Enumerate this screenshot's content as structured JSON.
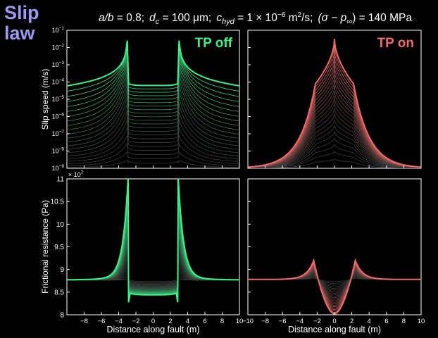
{
  "figure": {
    "law_title": [
      "Slip",
      "law"
    ],
    "params_caption": {
      "ab_symbol": "a/b",
      "ab_value": " = 0.8;",
      "dc_symbol": "d",
      "dc_sub": "c",
      "dc_value": " = 100 μm;",
      "chyd_symbol": "c",
      "chyd_sub": "hyd",
      "chyd_value": " = 1 × 10",
      "chyd_exp": "−6",
      "chyd_unit": " m",
      "chyd_unit_exp": "2",
      "chyd_unit_tail": "/s;",
      "stress_symbol": "(σ − p",
      "stress_sub": "∞",
      "stress_value": ") = 140 MPa"
    },
    "colors": {
      "background": "#000000",
      "law_title": "#9f97f0",
      "tp_off": "#3ef08a",
      "tp_on": "#f06a6a",
      "axes": "#ffffff"
    }
  },
  "chart_data": [
    {
      "id": "slip_tp_off",
      "type": "line",
      "panel_label": "TP off",
      "label_color": "#3ef08a",
      "ylabel": "Slip speed (m/s)",
      "xlabel": "",
      "xlim": [
        -10,
        10
      ],
      "ylim_log10": [
        -9,
        -1
      ],
      "yscale": "log",
      "y_ticks": [
        {
          "base": "10",
          "exp": "−1"
        },
        {
          "base": "10",
          "exp": "−2"
        },
        {
          "base": "10",
          "exp": "−3"
        },
        {
          "base": "10",
          "exp": "−4"
        },
        {
          "base": "10",
          "exp": "−5"
        },
        {
          "base": "10",
          "exp": "−6"
        },
        {
          "base": "10",
          "exp": "−7"
        },
        {
          "base": "10",
          "exp": "−8"
        },
        {
          "base": "10",
          "exp": "−9"
        }
      ],
      "x_ticks": [],
      "profile": {
        "kind": "tp_off_slip",
        "rupture_half_width": 3.0,
        "center_plateau_log10_final": -4.2,
        "peak_log10": -1.6,
        "background_log10": -9
      },
      "series_count": 22
    },
    {
      "id": "slip_tp_on",
      "type": "line",
      "panel_label": "TP on",
      "label_color": "#f06a6a",
      "ylabel": "",
      "xlabel": "",
      "xlim": [
        -10,
        10
      ],
      "ylim_log10": [
        -9,
        -1
      ],
      "yscale": "log",
      "y_ticks": [],
      "x_ticks": [],
      "profile": {
        "kind": "tp_on_slip",
        "peak_log10": -1.5,
        "shoulder_log10": -4.1,
        "background_log10": -9
      },
      "series_count": 22
    },
    {
      "id": "stress_tp_off",
      "type": "line",
      "ylabel": "Frictional resistance (Pa)",
      "xlabel": "Distance along fault (m)",
      "multiplier_label": {
        "base": "× 10",
        "exp": "7"
      },
      "xlim": [
        -10,
        10
      ],
      "ylim": [
        8,
        11
      ],
      "y_ticks": [
        "11",
        "10.5",
        "10",
        "9.5",
        "9",
        "8.5",
        "8"
      ],
      "y_tick_values": [
        11,
        10.5,
        10,
        9.5,
        9,
        8.5,
        8
      ],
      "x_ticks": [
        "−8",
        "−6",
        "−4",
        "−2",
        "0",
        "2",
        "4",
        "6",
        "8",
        "10"
      ],
      "x_tick_values": [
        -8,
        -6,
        -4,
        -2,
        0,
        2,
        4,
        6,
        8,
        10
      ],
      "profile": {
        "kind": "tp_off_stress",
        "background": 8.76,
        "center_final": 8.44,
        "peak": 11.0,
        "min_edge": 8.22
      },
      "series_count": 22
    },
    {
      "id": "stress_tp_on",
      "type": "line",
      "ylabel": "",
      "xlabel": "Distance along fault (m)",
      "xlim": [
        -10,
        10
      ],
      "ylim": [
        8,
        11
      ],
      "y_ticks": [],
      "x_ticks": [
        "−10",
        "−8",
        "−6",
        "−4",
        "−2",
        "0",
        "2",
        "4",
        "6",
        "8",
        "10"
      ],
      "x_tick_values": [
        -10,
        -8,
        -6,
        -4,
        -2,
        0,
        2,
        4,
        6,
        8,
        10
      ],
      "profile": {
        "kind": "tp_on_stress",
        "background": 8.78,
        "peak": 9.2,
        "center_min": 8.02
      },
      "series_count": 22
    }
  ]
}
